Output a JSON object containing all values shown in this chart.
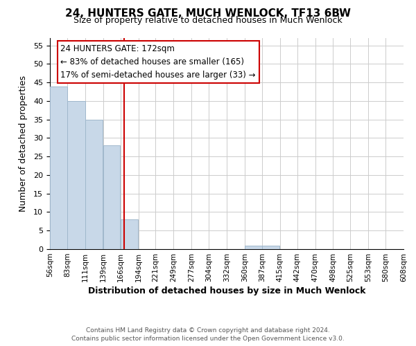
{
  "title": "24, HUNTERS GATE, MUCH WENLOCK, TF13 6BW",
  "subtitle": "Size of property relative to detached houses in Much Wenlock",
  "xlabel": "Distribution of detached houses by size in Much Wenlock",
  "ylabel": "Number of detached properties",
  "bin_edges": [
    56,
    83,
    111,
    139,
    166,
    194,
    221,
    249,
    277,
    304,
    332,
    360,
    387,
    415,
    442,
    470,
    498,
    525,
    553,
    580,
    608
  ],
  "bin_labels": [
    "56sqm",
    "83sqm",
    "111sqm",
    "139sqm",
    "166sqm",
    "194sqm",
    "221sqm",
    "249sqm",
    "277sqm",
    "304sqm",
    "332sqm",
    "360sqm",
    "387sqm",
    "415sqm",
    "442sqm",
    "470sqm",
    "498sqm",
    "525sqm",
    "553sqm",
    "580sqm",
    "608sqm"
  ],
  "counts": [
    44,
    40,
    35,
    28,
    8,
    0,
    0,
    0,
    0,
    0,
    0,
    1,
    1,
    0,
    0,
    0,
    0,
    0,
    0,
    0
  ],
  "bar_color": "#c8d8e8",
  "bar_edgecolor": "#a0b8cc",
  "marker_value": 172,
  "marker_color": "#cc0000",
  "annotation_line1": "24 HUNTERS GATE: 172sqm",
  "annotation_line2": "← 83% of detached houses are smaller (165)",
  "annotation_line3": "17% of semi-detached houses are larger (33) →",
  "ylim": [
    0,
    57
  ],
  "yticks": [
    0,
    5,
    10,
    15,
    20,
    25,
    30,
    35,
    40,
    45,
    50,
    55
  ],
  "footer_line1": "Contains HM Land Registry data © Crown copyright and database right 2024.",
  "footer_line2": "Contains public sector information licensed under the Open Government Licence v3.0.",
  "background_color": "#ffffff",
  "grid_color": "#cccccc"
}
